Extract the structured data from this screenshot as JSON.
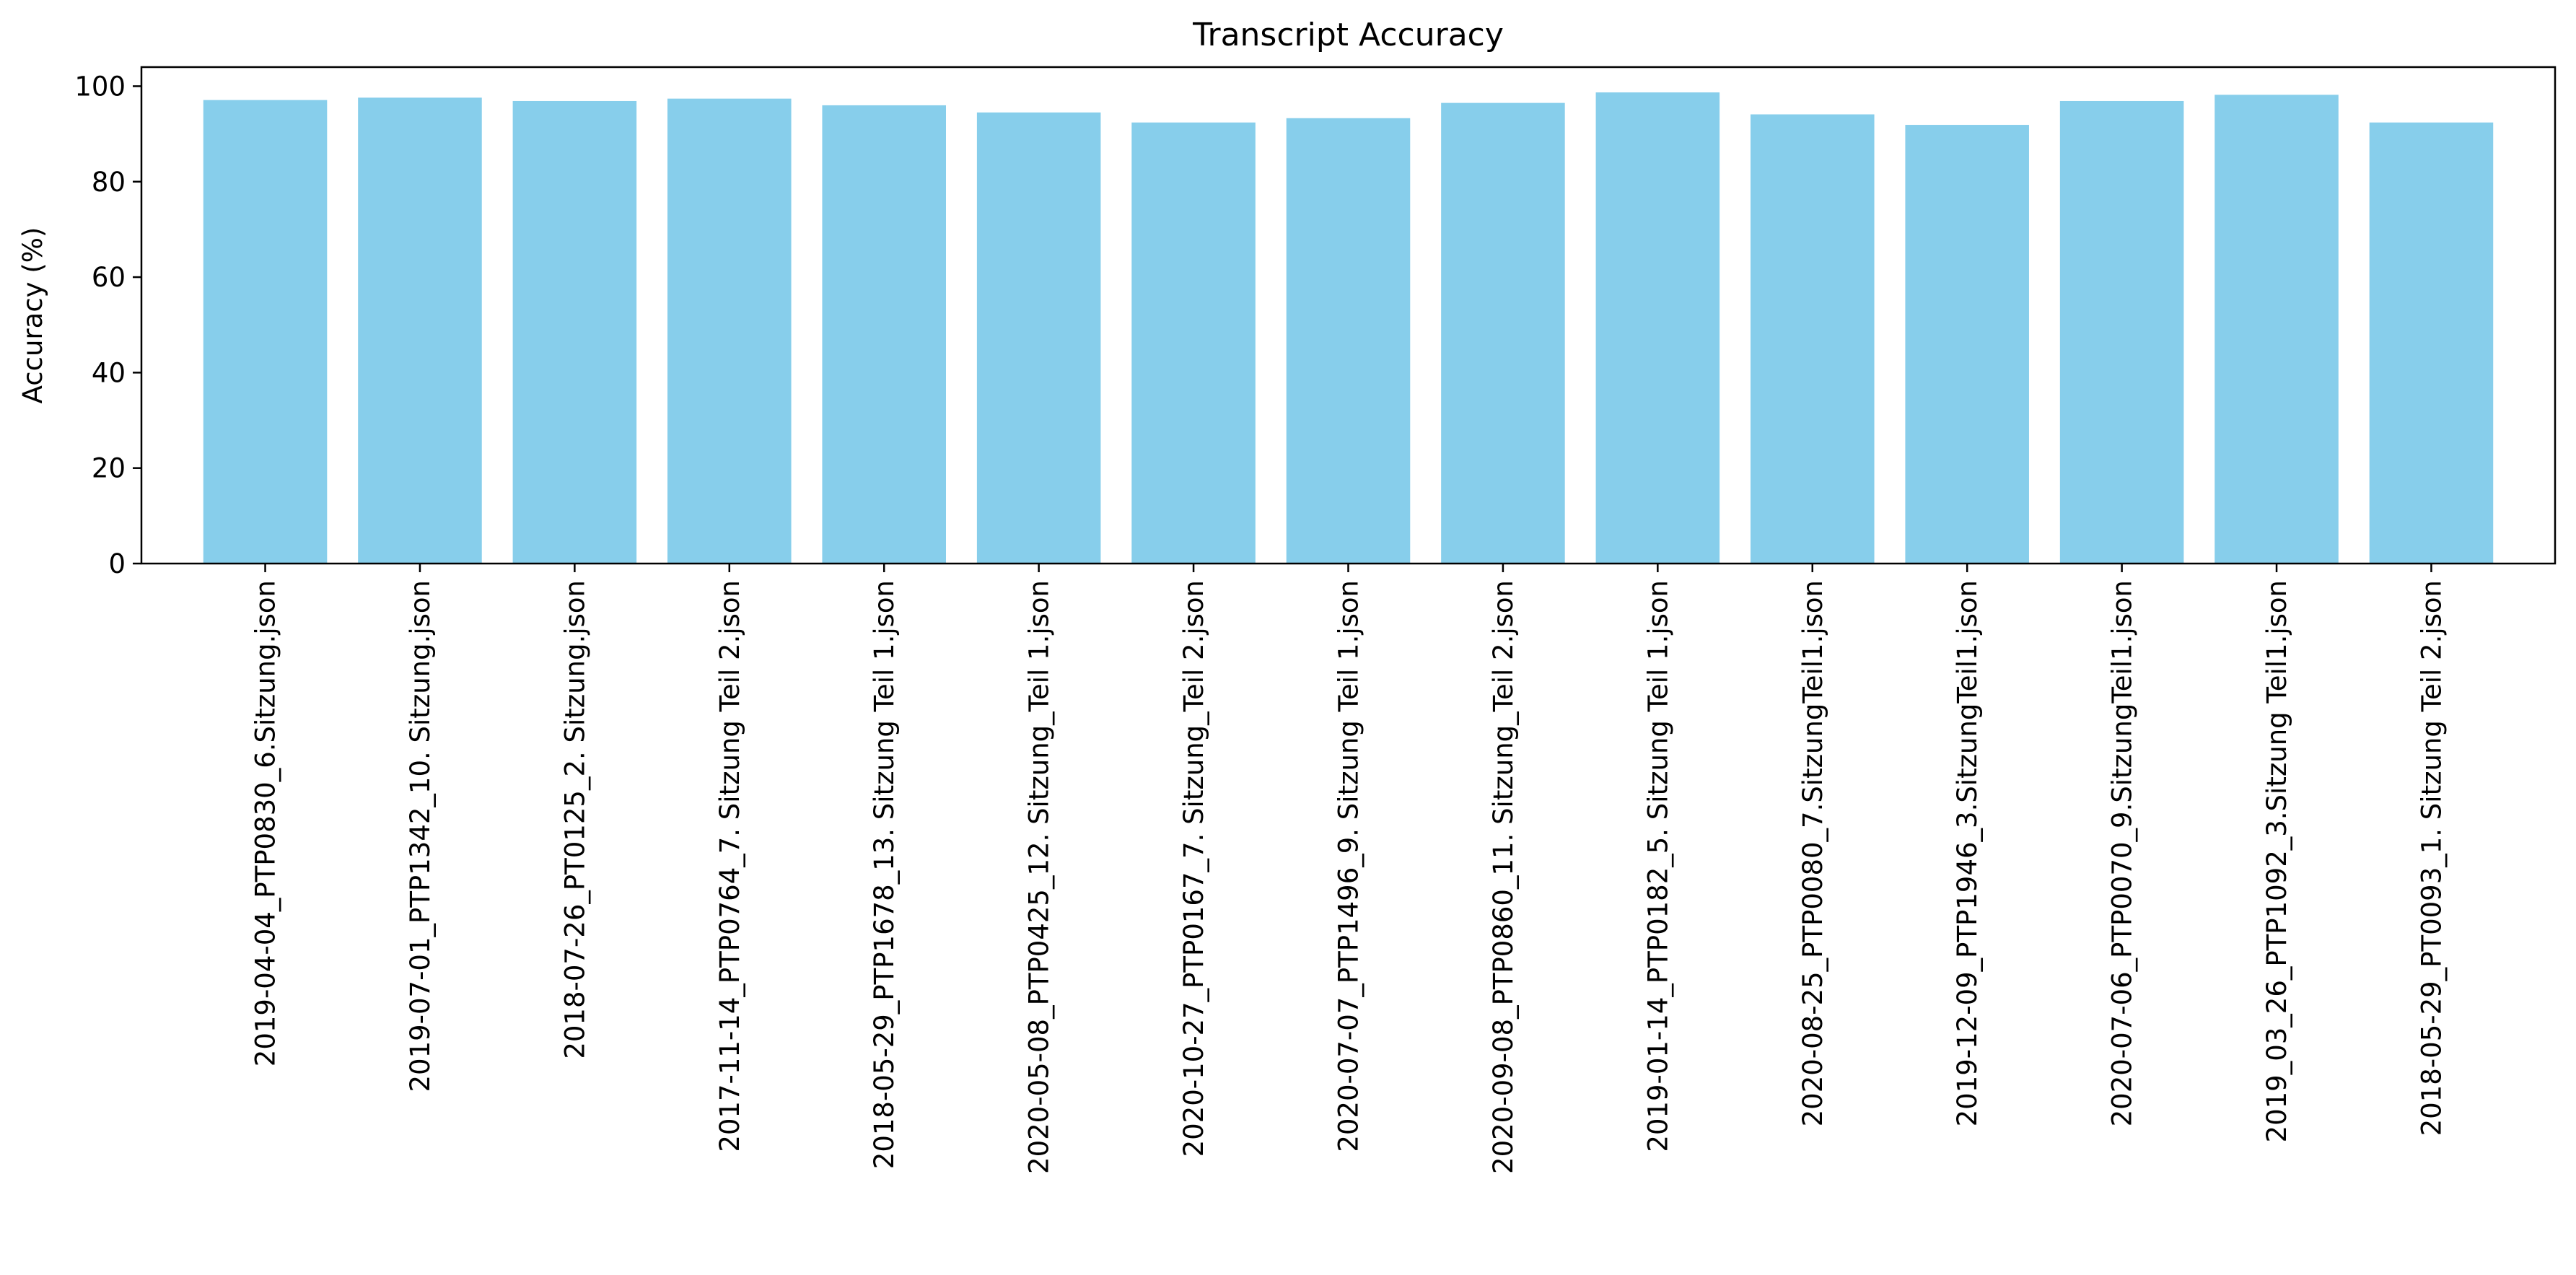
{
  "chart_data": {
    "type": "bar",
    "title": "Transcript Accuracy",
    "xlabel": "",
    "ylabel": "Accuracy (%)",
    "ylim": [
      0,
      104
    ],
    "yticks": [
      0,
      20,
      40,
      60,
      80,
      100
    ],
    "grid": false,
    "bar_color": "#87CEEB",
    "categories": [
      "2019-04-04_PTP0830_6.Sitzung.json",
      "2019-07-01_PTP1342_10. Sitzung.json",
      "2018-07-26_PT0125_2. Sitzung.json",
      "2017-11-14_PTP0764_7. Sitzung Teil 2.json",
      "2018-05-29_PTP1678_13. Sitzung Teil 1.json",
      "2020-05-08_PTP0425_12. Sitzung_Teil 1.json",
      "2020-10-27_PTP0167_7. Sitzung_Teil 2.json",
      "2020-07-07_PTP1496_9. Sitzung Teil 1.json",
      "2020-09-08_PTP0860_11. Sitzung_Teil 2.json",
      "2019-01-14_PTP0182_5. Sitzung Teil 1.json",
      "2020-08-25_PTP0080_7.SitzungTeil1.json",
      "2019-12-09_PTP1946_3.SitzungTeil1.json",
      "2020-07-06_PTP0070_9.SitzungTeil1.json",
      "2019_03_26_PTP1092_3.Sitzung Teil1.json",
      "2018-05-29_PT0093_1. Sitzung Teil 2.json"
    ],
    "values": [
      97.1,
      97.6,
      96.9,
      97.4,
      96.0,
      94.5,
      92.4,
      93.3,
      96.5,
      98.7,
      94.1,
      91.9,
      96.9,
      98.2,
      92.4
    ]
  }
}
